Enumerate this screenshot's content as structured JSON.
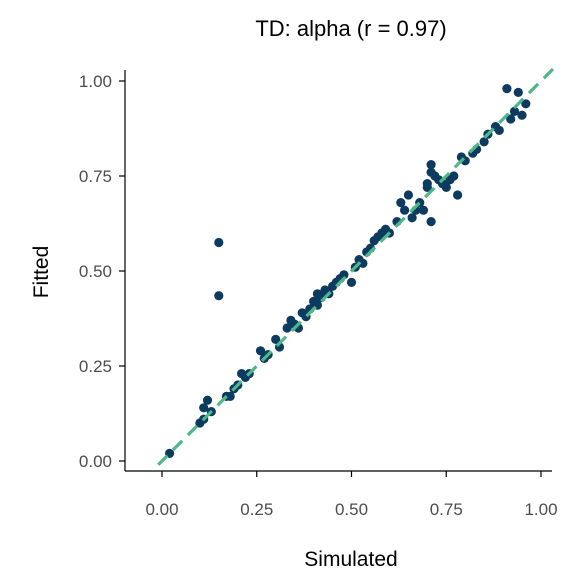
{
  "chart_data": {
    "type": "scatter",
    "title": "TD: alpha (r = 0.97)",
    "xlabel": "Simulated",
    "ylabel": "Fitted",
    "xlim": [
      0,
      1
    ],
    "ylim": [
      0,
      1
    ],
    "x_ticks": [
      "0.00",
      "0.25",
      "0.50",
      "0.75",
      "1.00"
    ],
    "y_ticks": [
      "0.00",
      "0.25",
      "0.50",
      "0.75",
      "1.00"
    ],
    "grid": false,
    "point_color": "#0d3a5f",
    "reference_line": {
      "style": "dashed",
      "color": "#4fb88a",
      "slope": 1,
      "intercept": 0
    },
    "points": [
      [
        0.02,
        0.02
      ],
      [
        0.1,
        0.1
      ],
      [
        0.11,
        0.11
      ],
      [
        0.11,
        0.14
      ],
      [
        0.12,
        0.16
      ],
      [
        0.13,
        0.13
      ],
      [
        0.15,
        0.575
      ],
      [
        0.15,
        0.435
      ],
      [
        0.17,
        0.17
      ],
      [
        0.18,
        0.17
      ],
      [
        0.19,
        0.19
      ],
      [
        0.2,
        0.2
      ],
      [
        0.21,
        0.23
      ],
      [
        0.22,
        0.22
      ],
      [
        0.23,
        0.23
      ],
      [
        0.26,
        0.29
      ],
      [
        0.27,
        0.27
      ],
      [
        0.28,
        0.28
      ],
      [
        0.3,
        0.32
      ],
      [
        0.31,
        0.3
      ],
      [
        0.33,
        0.35
      ],
      [
        0.34,
        0.37
      ],
      [
        0.35,
        0.36
      ],
      [
        0.36,
        0.35
      ],
      [
        0.37,
        0.39
      ],
      [
        0.38,
        0.38
      ],
      [
        0.39,
        0.4
      ],
      [
        0.4,
        0.42
      ],
      [
        0.41,
        0.41
      ],
      [
        0.41,
        0.44
      ],
      [
        0.42,
        0.43
      ],
      [
        0.43,
        0.45
      ],
      [
        0.44,
        0.44
      ],
      [
        0.45,
        0.46
      ],
      [
        0.46,
        0.47
      ],
      [
        0.47,
        0.48
      ],
      [
        0.48,
        0.49
      ],
      [
        0.5,
        0.47
      ],
      [
        0.51,
        0.51
      ],
      [
        0.52,
        0.53
      ],
      [
        0.53,
        0.52
      ],
      [
        0.54,
        0.55
      ],
      [
        0.55,
        0.56
      ],
      [
        0.56,
        0.58
      ],
      [
        0.57,
        0.59
      ],
      [
        0.58,
        0.6
      ],
      [
        0.59,
        0.61
      ],
      [
        0.6,
        0.6
      ],
      [
        0.62,
        0.63
      ],
      [
        0.63,
        0.68
      ],
      [
        0.64,
        0.66
      ],
      [
        0.65,
        0.7
      ],
      [
        0.66,
        0.64
      ],
      [
        0.67,
        0.66
      ],
      [
        0.68,
        0.68
      ],
      [
        0.69,
        0.66
      ],
      [
        0.7,
        0.72
      ],
      [
        0.7,
        0.73
      ],
      [
        0.71,
        0.78
      ],
      [
        0.71,
        0.76
      ],
      [
        0.71,
        0.63
      ],
      [
        0.72,
        0.75
      ],
      [
        0.73,
        0.74
      ],
      [
        0.74,
        0.73
      ],
      [
        0.75,
        0.72
      ],
      [
        0.76,
        0.74
      ],
      [
        0.77,
        0.75
      ],
      [
        0.78,
        0.7
      ],
      [
        0.79,
        0.8
      ],
      [
        0.8,
        0.79
      ],
      [
        0.82,
        0.81
      ],
      [
        0.83,
        0.82
      ],
      [
        0.85,
        0.84
      ],
      [
        0.86,
        0.86
      ],
      [
        0.88,
        0.88
      ],
      [
        0.89,
        0.87
      ],
      [
        0.91,
        0.98
      ],
      [
        0.92,
        0.9
      ],
      [
        0.93,
        0.92
      ],
      [
        0.94,
        0.97
      ],
      [
        0.95,
        0.91
      ],
      [
        0.96,
        0.94
      ]
    ]
  }
}
